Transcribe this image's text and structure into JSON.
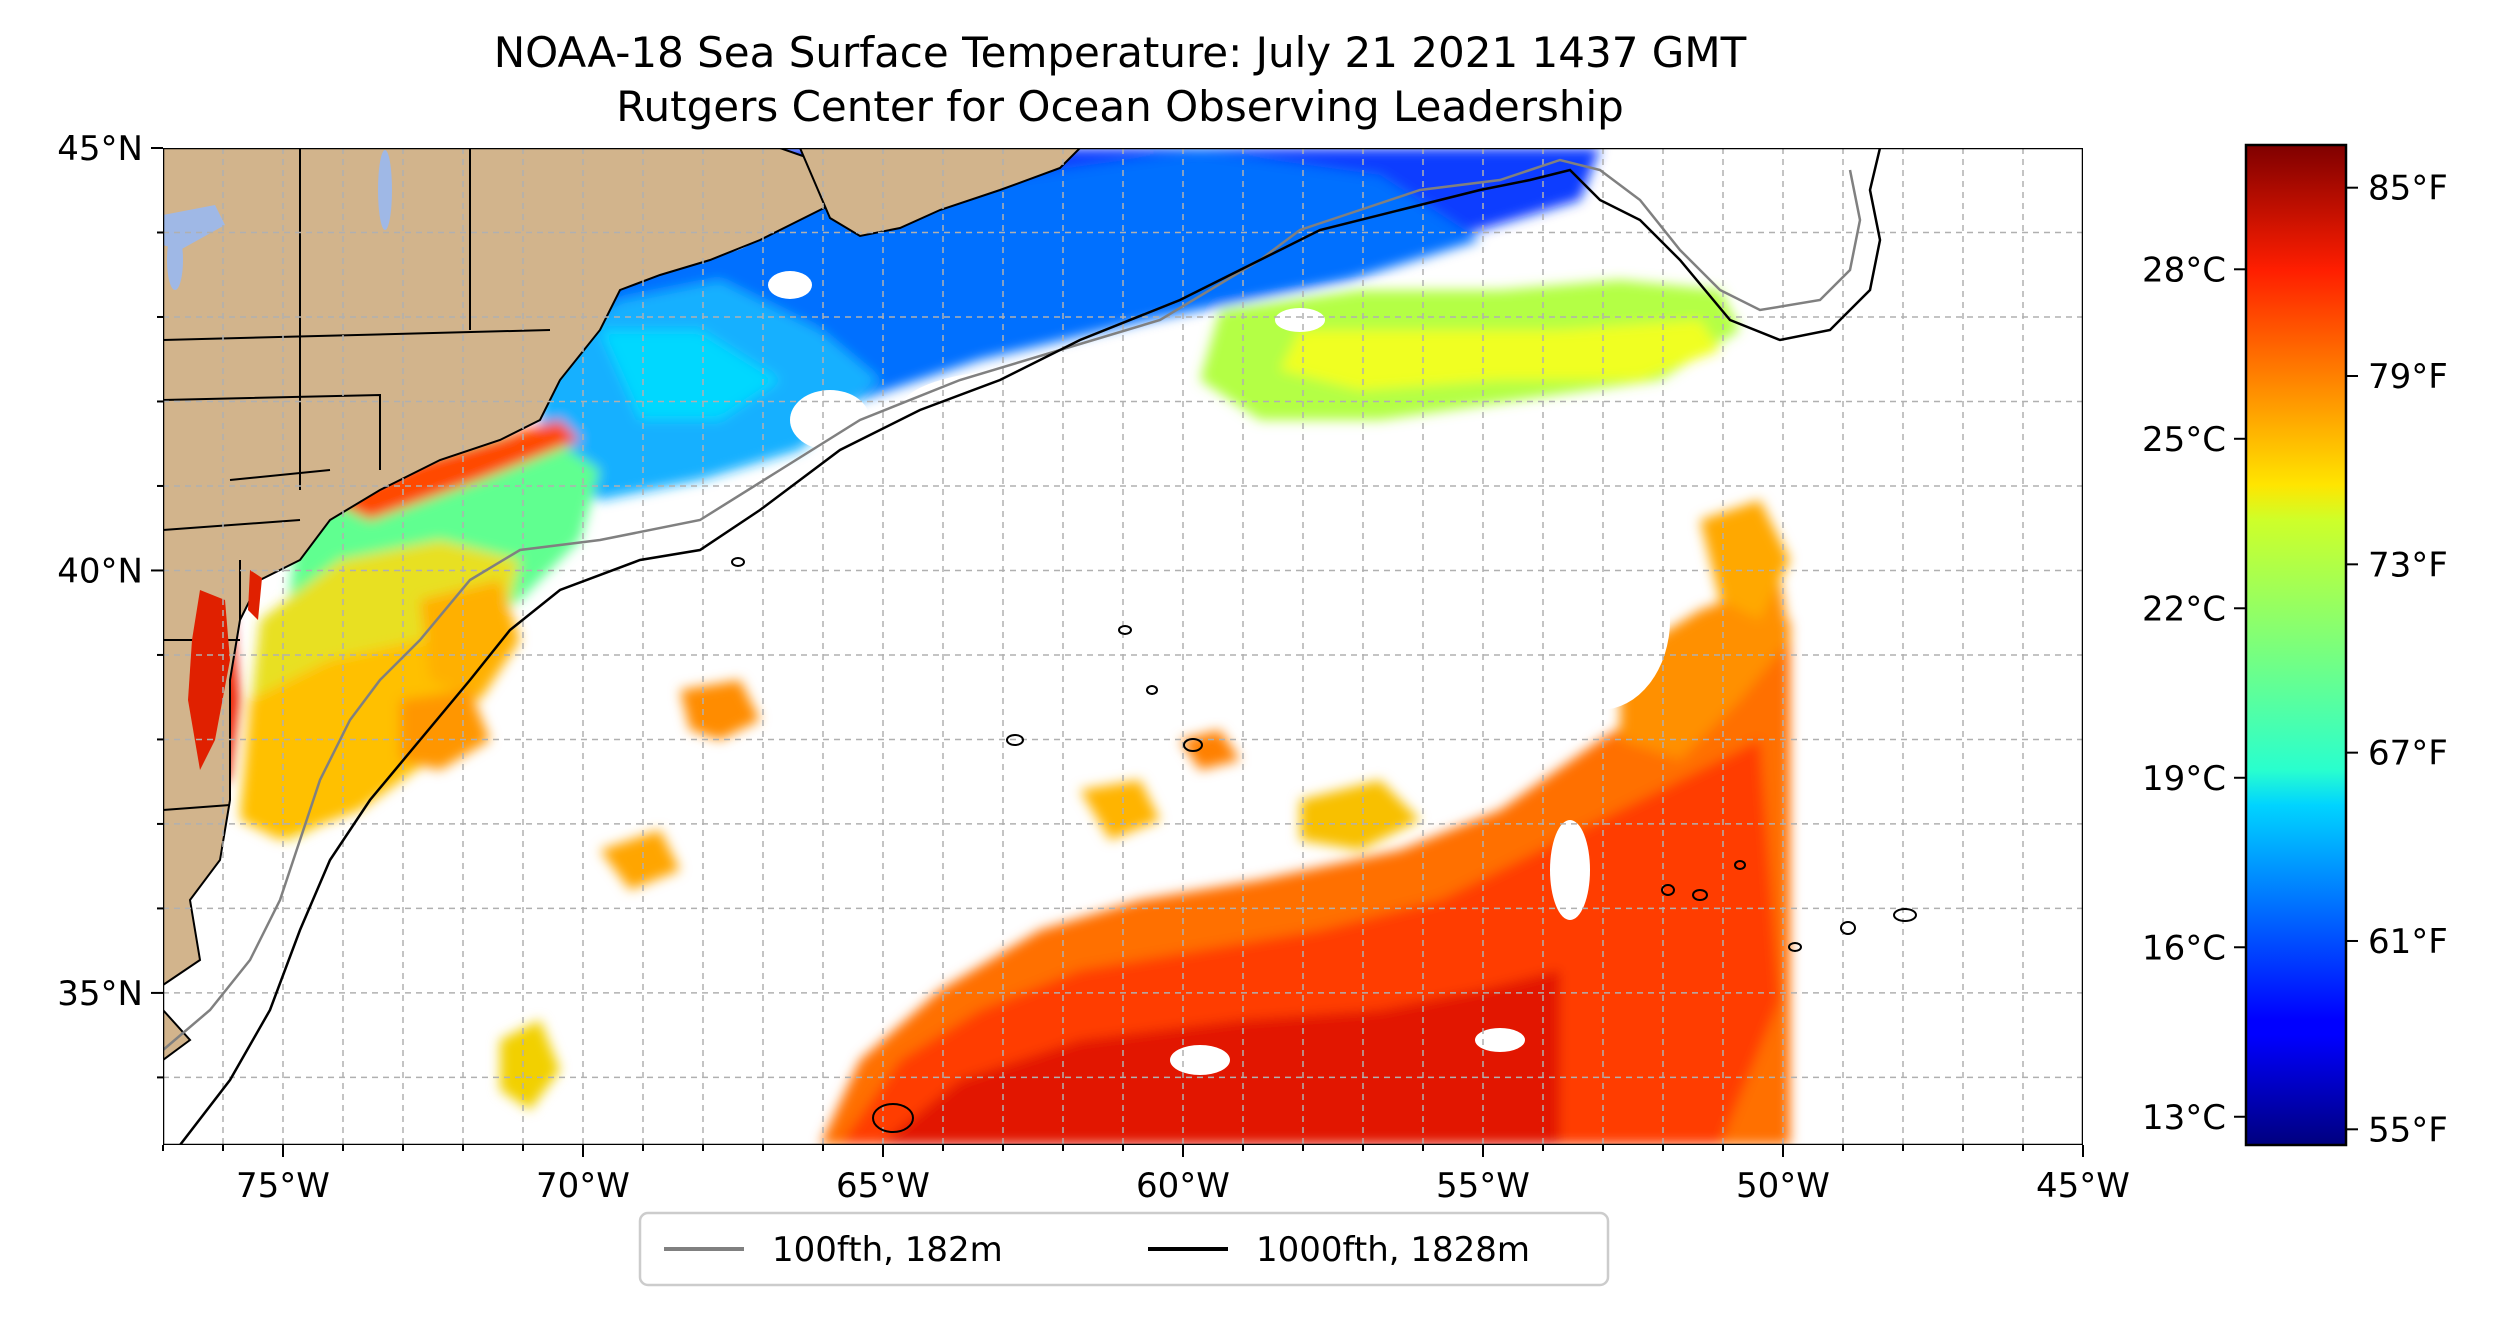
{
  "title": "NOAA-18 Sea Surface Temperature: July 21 2021 1437 GMT",
  "subtitle": "Rutgers Center for Ocean Observing Leadership",
  "map": {
    "lon_range": [
      -77,
      -45
    ],
    "lat_range": [
      33.2,
      45
    ],
    "lon_ticks": [
      {
        "value": -75,
        "label": "75°W"
      },
      {
        "value": -70,
        "label": "70°W"
      },
      {
        "value": -65,
        "label": "65°W"
      },
      {
        "value": -60,
        "label": "60°W"
      },
      {
        "value": -55,
        "label": "55°W"
      },
      {
        "value": -50,
        "label": "50°W"
      },
      {
        "value": -45,
        "label": "45°W"
      }
    ],
    "lat_ticks": [
      {
        "value": 45,
        "label": "45°N"
      },
      {
        "value": 40,
        "label": "40°N"
      },
      {
        "value": 35,
        "label": "35°N"
      }
    ],
    "gridlines": true,
    "land_color": "#d2b48c",
    "colors": {
      "grid": "#b0b0b0",
      "isobath_100": "#808080",
      "isobath_1000": "#000000"
    }
  },
  "colorbar": {
    "colormap": "jet",
    "celsius_ticks": [
      "28°C",
      "25°C",
      "22°C",
      "19°C",
      "16°C",
      "13°C"
    ],
    "fahrenheit_ticks": [
      "85°F",
      "79°F",
      "73°F",
      "67°F",
      "61°F",
      "55°F"
    ]
  },
  "legend": {
    "items": [
      {
        "label": "100fth, 182m",
        "color": "#808080"
      },
      {
        "label": "1000fth, 1828m",
        "color": "#000000"
      }
    ]
  }
}
